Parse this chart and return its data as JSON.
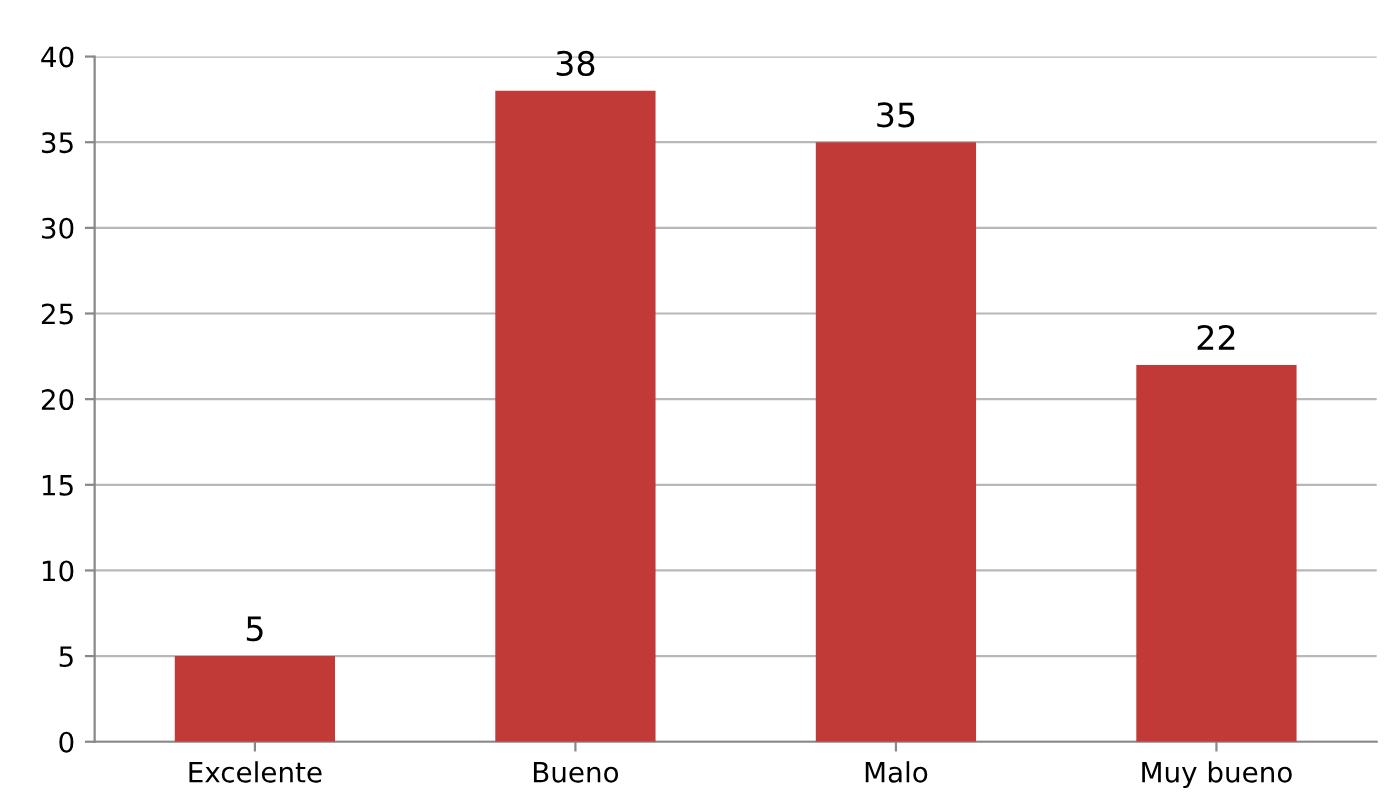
{
  "chart_data": {
    "type": "bar",
    "categories": [
      "Excelente",
      "Bueno",
      "Malo",
      "Muy bueno"
    ],
    "values": [
      5,
      38,
      35,
      22
    ],
    "color": "#c23a37",
    "ylim": [
      0,
      40
    ],
    "yticks": [
      0,
      5,
      10,
      15,
      20,
      25,
      30,
      35,
      40
    ],
    "grid": "y",
    "data_labels": true,
    "legend": false
  }
}
